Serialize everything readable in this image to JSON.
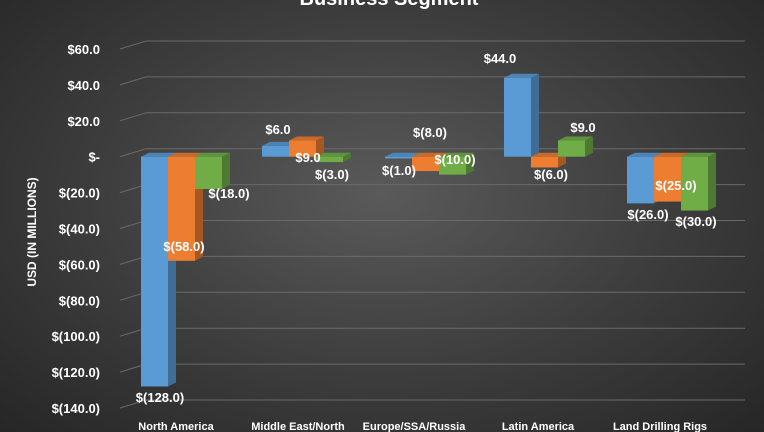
{
  "chart_data": {
    "type": "bar",
    "title": "Business Segment",
    "ylabel": "USD (IN MILLIONS)",
    "ylim": [
      -140,
      60
    ],
    "yticks": [
      60,
      40,
      20,
      0,
      -20,
      -40,
      -60,
      -80,
      -100,
      -120,
      -140
    ],
    "ytick_labels": [
      "$60.0",
      "$40.0",
      "$20.0",
      "$-",
      "$(20.0)",
      "$(40.0)",
      "$(60.0)",
      "$(80.0)",
      "$(100.0)",
      "$(120.0)",
      "$(140.0)"
    ],
    "grid": true,
    "legend": "none",
    "categories": [
      "North America",
      "Middle East/North",
      "Europe/SSA/Russia",
      "Latin America",
      "Land Drilling Rigs"
    ],
    "series": [
      {
        "color": "#5b9bd5",
        "values": [
          -128,
          6,
          -1,
          44,
          -26
        ],
        "labels": [
          "$(128.0)",
          "$6.0",
          "$(1.0)",
          "$44.0",
          "$(26.0)"
        ]
      },
      {
        "color": "#ed7d31",
        "values": [
          -58,
          9,
          -8,
          -6,
          -25
        ],
        "labels": [
          "$(58.0)",
          "$9.0",
          "$(8.0)",
          "$(6.0)",
          "$(25.0)"
        ]
      },
      {
        "color": "#70ad47",
        "values": [
          -18,
          -3,
          -10,
          9,
          -30
        ],
        "labels": [
          "$(18.0)",
          "$(3.0)",
          "$(10.0)",
          "$9.0",
          "$(30.0)"
        ]
      }
    ]
  }
}
